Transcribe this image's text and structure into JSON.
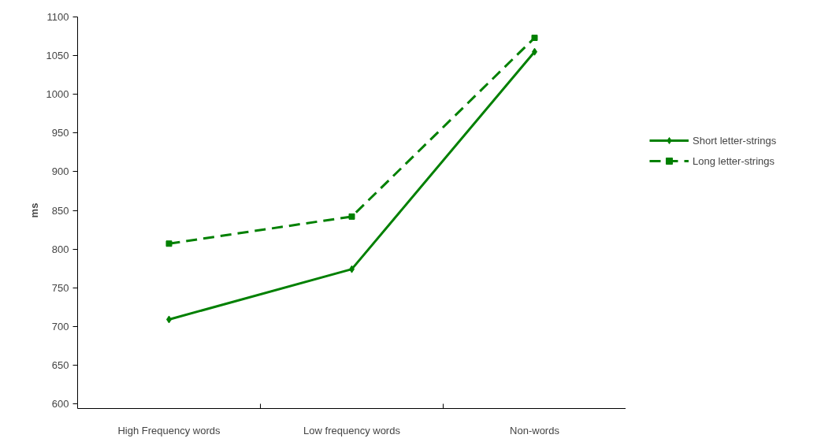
{
  "chart_data": {
    "type": "line",
    "ylabel": "ms",
    "categories": [
      "High Frequency words",
      "Low frequency words",
      "Non-words"
    ],
    "series": [
      {
        "name": "Short letter-strings",
        "color": "#008000",
        "values": [
          709,
          774,
          1055
        ],
        "marker": "diamond",
        "line_style": "solid"
      },
      {
        "name": "Long letter-strings",
        "color": "#008000",
        "values": [
          807,
          842,
          1073
        ],
        "marker": "square",
        "line_style": "dashed"
      }
    ],
    "ylim": [
      600,
      1100
    ],
    "yticks": [
      600,
      650,
      700,
      750,
      800,
      850,
      900,
      950,
      1000,
      1050,
      1100
    ],
    "grid": false,
    "legend": "right"
  }
}
